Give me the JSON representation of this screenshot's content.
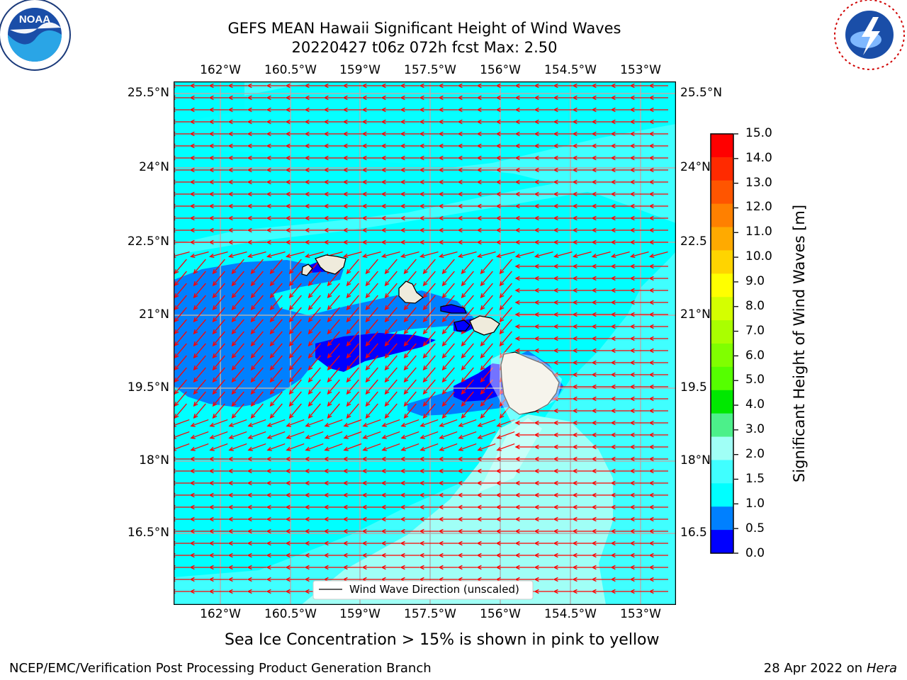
{
  "header": {
    "title_line1": "GEFS MEAN Hawaii Significant Height of Wind Waves",
    "title_line2": "20220427 t06z 072h fcst   Max: 2.50"
  },
  "logos": {
    "noaa": {
      "icon": "noaa-logo",
      "text": "NOAA",
      "ring_text": "NATIONAL OCEANIC AND ATMOSPHERIC ADMINISTRATION · U.S. DEPARTMENT OF COMMERCE"
    },
    "nws": {
      "icon": "nws-logo",
      "ring_text": "NATIONAL WEATHER SERVICE"
    }
  },
  "map": {
    "lon_labels": [
      "162°W",
      "160.5°W",
      "159°W",
      "157.5°W",
      "156°W",
      "154.5°W",
      "153°W"
    ],
    "lat_labels_left": [
      "25.5°N",
      "24°N",
      "22.5°N",
      "21°N",
      "19.5°N",
      "18°N",
      "16.5°N"
    ],
    "lat_labels_right": [
      "25.5°N",
      "24°N",
      "22.5",
      "21°N",
      "19.5",
      "18°N",
      "16.5"
    ],
    "legend_label": "Wind Wave Direction (unscaled)",
    "arrow_color": "#ff0000",
    "land_color": "#efebdc",
    "grid_color": "#b0b0b0"
  },
  "colorbar": {
    "label": "Significant Height of Wind Waves [m]",
    "ticks": [
      "15.0",
      "14.0",
      "13.0",
      "12.0",
      "11.0",
      "10.0",
      "9.0",
      "8.0",
      "7.0",
      "6.0",
      "5.0",
      "4.0",
      "3.0",
      "2.0",
      "1.5",
      "1.0",
      "0.5",
      "0.0"
    ],
    "colors_top_to_bottom": [
      "#ff0000",
      "#ff2a00",
      "#ff5500",
      "#ff8000",
      "#ffaa00",
      "#ffd400",
      "#ffff00",
      "#d4ff00",
      "#aaff00",
      "#80ff00",
      "#55ff00",
      "#00e800",
      "#4cf08a",
      "#a0fff6",
      "#40ffff",
      "#00ffff",
      "#0080ff",
      "#0000ff"
    ]
  },
  "note": "Sea Ice Concentration > 15% is shown in pink to yellow",
  "footer": {
    "left": "NCEP/EMC/Verification Post Processing Product Generation Branch",
    "right_prefix": "28 Apr 2022 on ",
    "right_host": "Hera"
  }
}
